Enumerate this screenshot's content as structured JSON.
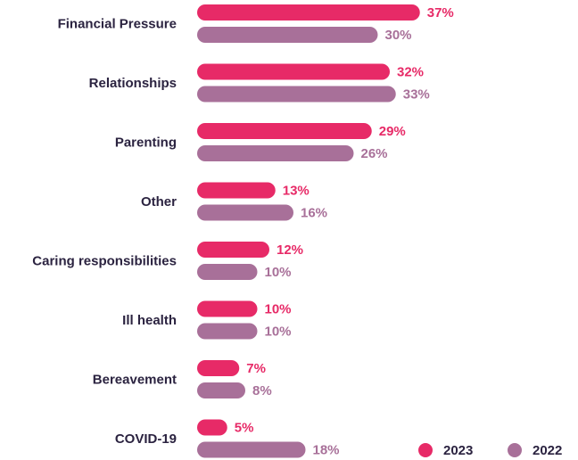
{
  "chart_data": {
    "type": "bar",
    "orientation": "horizontal",
    "categories": [
      "Financial Pressure",
      "Relationships",
      "Parenting",
      "Other",
      "Caring responsibilities",
      "Ill health",
      "Bereavement",
      "COVID-19"
    ],
    "series": [
      {
        "name": "2023",
        "color": "#e72a67",
        "values": [
          37,
          32,
          29,
          13,
          12,
          10,
          7,
          5
        ],
        "value_labels": [
          "37%",
          "32%",
          "29%",
          "13%",
          "12%",
          "10%",
          "7%",
          "5%"
        ]
      },
      {
        "name": "2022",
        "color": "#a87099",
        "values": [
          30,
          33,
          26,
          16,
          10,
          10,
          8,
          18
        ],
        "value_labels": [
          "30%",
          "33%",
          "26%",
          "16%",
          "10%",
          "10%",
          "8%",
          "18%"
        ]
      }
    ],
    "legend": "bottom-right"
  }
}
